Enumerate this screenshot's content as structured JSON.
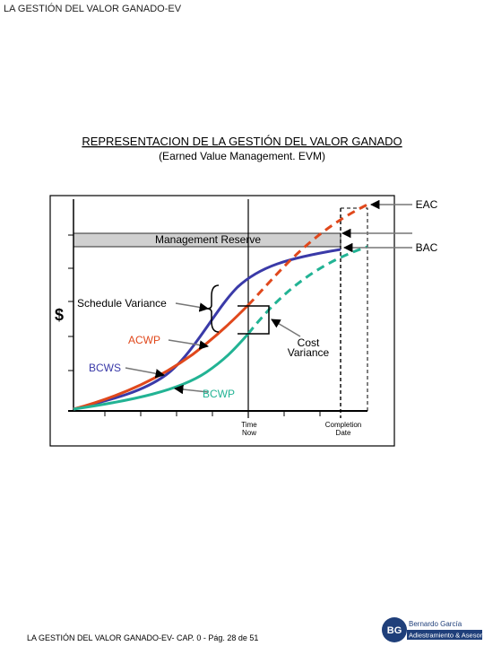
{
  "header": {
    "title": "LA GESTIÓN DEL VALOR GANADO-EV"
  },
  "slide": {
    "title": "REPRESENTACION DE LA GESTIÓN DEL VALOR GANADO",
    "subtitle": "(Earned Value Management. EVM)"
  },
  "diagram": {
    "eac": "EAC",
    "bac": "BAC",
    "management_reserve": "Management Reserve",
    "y_axis": "$",
    "schedule_variance": "Schedule Variance",
    "acwp": "ACWP",
    "cost_variance": [
      "Cost",
      "Variance"
    ],
    "bcws": "BCWS",
    "bcwp": "BCWP",
    "time_now": [
      "Time",
      "Now"
    ],
    "completion_date": [
      "Completion",
      "Date"
    ]
  },
  "footer": {
    "text": "LA GESTIÓN DEL VALOR GANADO-EV- CAP. 0 - Pág. 28 de 51",
    "logo": {
      "initials": "BG",
      "name": "Bernardo García",
      "tagline": "Adiestramiento & Asesoría"
    }
  }
}
